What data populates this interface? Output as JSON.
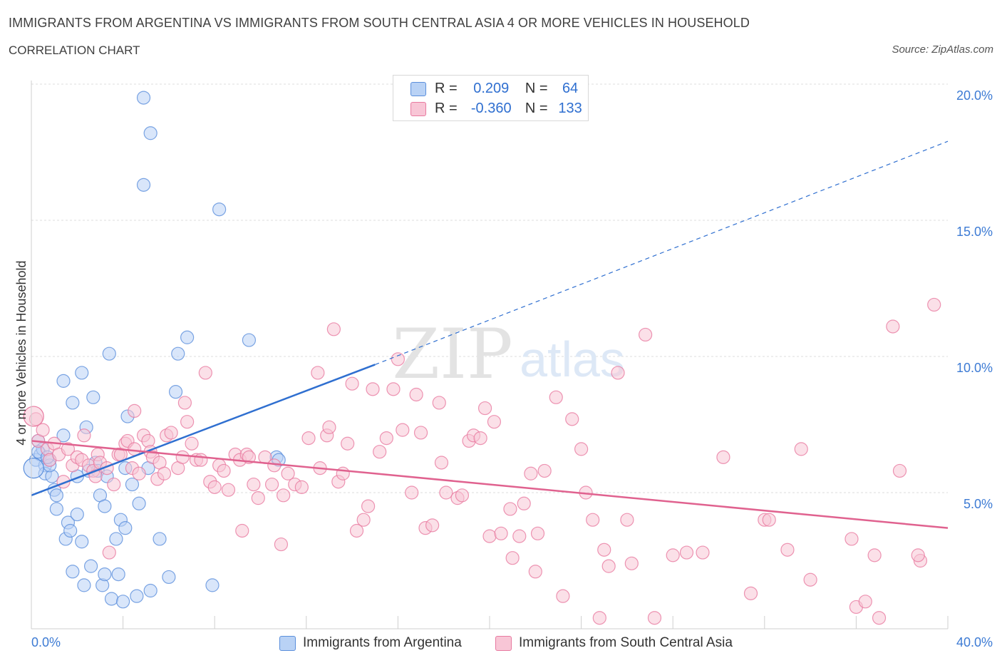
{
  "title": "IMMIGRANTS FROM ARGENTINA VS IMMIGRANTS FROM SOUTH CENTRAL ASIA 4 OR MORE VEHICLES IN HOUSEHOLD",
  "subtitle": "CORRELATION CHART",
  "source": "Source: ZipAtlas.com",
  "colors": {
    "blue": "#5b8fdc",
    "blue_fill": "#b9d2f5",
    "blue_line": "#2f6fd0",
    "pink": "#e87aa0",
    "pink_fill": "#f8c6d6",
    "pink_line": "#e0628f",
    "axis_label": "#3d7bd4"
  },
  "legend": {
    "r_label": "R =",
    "n_label": "N =",
    "rows": [
      {
        "r": "0.209",
        "n": "64"
      },
      {
        "r": "-0.360",
        "n": "133"
      }
    ]
  },
  "chart_data": {
    "type": "scatter",
    "title": "IMMIGRANTS FROM ARGENTINA VS IMMIGRANTS FROM SOUTH CENTRAL ASIA 4 OR MORE VEHICLES IN HOUSEHOLD",
    "xlabel": "",
    "ylabel": "4 or more Vehicles in Household",
    "xlim": [
      0,
      40
    ],
    "ylim": [
      0,
      20
    ],
    "x_tick_labels": [
      "0.0%",
      "40.0%"
    ],
    "y_ticks": [
      5,
      10,
      15,
      20
    ],
    "y_tick_labels": [
      "5.0%",
      "10.0%",
      "15.0%",
      "20.0%"
    ],
    "grid": true,
    "legend_position": "top-center",
    "watermark": "ZIPatlas",
    "series": [
      {
        "name": "Immigrants from Argentina",
        "color": "blue",
        "r": 0.209,
        "n": 64,
        "trend": {
          "x0": 0,
          "y0": 4.9,
          "x1": 15,
          "y1": 9.7,
          "dashed_to_x": 40,
          "dashed_to_y": 17.9
        },
        "points": [
          [
            0.2,
            6.2
          ],
          [
            0.3,
            6.9
          ],
          [
            0.4,
            6.4
          ],
          [
            0.5,
            6.6
          ],
          [
            0.6,
            6.0
          ],
          [
            0.6,
            5.7
          ],
          [
            0.8,
            6.2
          ],
          [
            0.9,
            5.6
          ],
          [
            0.8,
            6.0
          ],
          [
            1.0,
            5.1
          ],
          [
            1.1,
            4.9
          ],
          [
            1.1,
            4.4
          ],
          [
            1.4,
            7.1
          ],
          [
            1.4,
            9.1
          ],
          [
            1.5,
            3.3
          ],
          [
            1.6,
            3.9
          ],
          [
            1.7,
            3.6
          ],
          [
            1.8,
            8.3
          ],
          [
            1.8,
            2.1
          ],
          [
            2.0,
            5.6
          ],
          [
            2.0,
            4.2
          ],
          [
            2.2,
            9.4
          ],
          [
            2.2,
            3.2
          ],
          [
            2.3,
            1.6
          ],
          [
            2.4,
            7.4
          ],
          [
            2.5,
            5.8
          ],
          [
            2.6,
            2.3
          ],
          [
            2.7,
            8.5
          ],
          [
            2.8,
            6.1
          ],
          [
            2.9,
            5.8
          ],
          [
            3.0,
            4.9
          ],
          [
            3.1,
            1.6
          ],
          [
            3.2,
            4.5
          ],
          [
            3.2,
            2.0
          ],
          [
            3.3,
            5.6
          ],
          [
            3.4,
            10.1
          ],
          [
            3.5,
            1.1
          ],
          [
            3.7,
            3.3
          ],
          [
            3.8,
            2.0
          ],
          [
            3.9,
            4.0
          ],
          [
            4.0,
            1.0
          ],
          [
            4.1,
            3.7
          ],
          [
            4.1,
            5.9
          ],
          [
            4.2,
            7.8
          ],
          [
            4.4,
            5.3
          ],
          [
            4.6,
            1.2
          ],
          [
            4.7,
            4.6
          ],
          [
            4.9,
            19.5
          ],
          [
            4.9,
            16.3
          ],
          [
            5.1,
            5.9
          ],
          [
            5.2,
            18.2
          ],
          [
            5.2,
            1.4
          ],
          [
            5.6,
            3.3
          ],
          [
            6.0,
            1.9
          ],
          [
            6.3,
            8.7
          ],
          [
            6.4,
            10.1
          ],
          [
            6.8,
            10.7
          ],
          [
            7.9,
            1.6
          ],
          [
            8.2,
            15.4
          ],
          [
            9.5,
            10.6
          ],
          [
            10.7,
            6.3
          ],
          [
            10.8,
            6.2
          ],
          [
            0.3,
            6.5
          ],
          [
            0.7,
            6.3
          ]
        ]
      },
      {
        "name": "Immigrants from South Central Asia",
        "color": "pink",
        "r": -0.36,
        "n": 133,
        "trend": {
          "x0": 0,
          "y0": 6.9,
          "x1": 40,
          "y1": 3.7
        },
        "points": [
          [
            0.2,
            7.7
          ],
          [
            0.3,
            6.9
          ],
          [
            0.5,
            7.3
          ],
          [
            0.7,
            6.6
          ],
          [
            0.8,
            6.2
          ],
          [
            1.0,
            6.8
          ],
          [
            1.2,
            6.4
          ],
          [
            1.4,
            5.4
          ],
          [
            1.6,
            6.6
          ],
          [
            1.8,
            6.0
          ],
          [
            2.0,
            6.3
          ],
          [
            2.2,
            6.2
          ],
          [
            2.3,
            7.1
          ],
          [
            2.5,
            6.0
          ],
          [
            2.7,
            5.8
          ],
          [
            2.8,
            5.6
          ],
          [
            2.9,
            6.4
          ],
          [
            3.0,
            6.1
          ],
          [
            3.3,
            5.9
          ],
          [
            3.4,
            2.8
          ],
          [
            3.6,
            5.3
          ],
          [
            3.8,
            6.4
          ],
          [
            3.9,
            6.4
          ],
          [
            4.1,
            6.8
          ],
          [
            4.2,
            6.9
          ],
          [
            4.4,
            5.9
          ],
          [
            4.5,
            8.0
          ],
          [
            4.7,
            5.7
          ],
          [
            4.9,
            7.1
          ],
          [
            5.1,
            6.9
          ],
          [
            5.2,
            6.5
          ],
          [
            5.3,
            6.3
          ],
          [
            5.5,
            5.5
          ],
          [
            5.6,
            6.1
          ],
          [
            5.8,
            5.7
          ],
          [
            5.9,
            7.1
          ],
          [
            6.1,
            7.2
          ],
          [
            6.4,
            5.9
          ],
          [
            6.6,
            6.3
          ],
          [
            6.7,
            8.3
          ],
          [
            6.8,
            7.6
          ],
          [
            7.0,
            6.8
          ],
          [
            7.2,
            6.2
          ],
          [
            7.4,
            6.2
          ],
          [
            7.6,
            9.4
          ],
          [
            7.8,
            5.4
          ],
          [
            8.0,
            5.2
          ],
          [
            8.2,
            6.0
          ],
          [
            8.4,
            5.8
          ],
          [
            8.6,
            5.1
          ],
          [
            8.9,
            6.4
          ],
          [
            9.1,
            6.2
          ],
          [
            9.2,
            3.6
          ],
          [
            9.4,
            6.4
          ],
          [
            9.5,
            6.3
          ],
          [
            9.7,
            5.3
          ],
          [
            9.9,
            4.8
          ],
          [
            10.2,
            6.3
          ],
          [
            10.5,
            5.3
          ],
          [
            10.6,
            6.0
          ],
          [
            10.9,
            3.1
          ],
          [
            11.0,
            4.9
          ],
          [
            11.2,
            5.7
          ],
          [
            11.5,
            5.3
          ],
          [
            11.8,
            5.2
          ],
          [
            12.1,
            7.0
          ],
          [
            12.5,
            9.4
          ],
          [
            12.6,
            5.9
          ],
          [
            12.9,
            7.1
          ],
          [
            13.0,
            7.4
          ],
          [
            13.2,
            11.0
          ],
          [
            13.4,
            5.4
          ],
          [
            13.6,
            5.7
          ],
          [
            13.8,
            6.8
          ],
          [
            14.0,
            9.0
          ],
          [
            14.2,
            3.6
          ],
          [
            14.5,
            4.0
          ],
          [
            14.7,
            4.5
          ],
          [
            14.9,
            8.8
          ],
          [
            15.2,
            6.5
          ],
          [
            15.5,
            7.0
          ],
          [
            15.8,
            8.8
          ],
          [
            16.0,
            9.9
          ],
          [
            16.2,
            7.3
          ],
          [
            16.6,
            5.0
          ],
          [
            16.8,
            8.6
          ],
          [
            17.0,
            7.2
          ],
          [
            17.2,
            3.7
          ],
          [
            17.5,
            3.8
          ],
          [
            17.8,
            8.3
          ],
          [
            17.9,
            6.1
          ],
          [
            18.1,
            5.0
          ],
          [
            18.6,
            4.8
          ],
          [
            18.8,
            4.9
          ],
          [
            19.1,
            6.9
          ],
          [
            19.3,
            7.1
          ],
          [
            19.6,
            7.0
          ],
          [
            19.8,
            8.1
          ],
          [
            20.0,
            3.4
          ],
          [
            20.2,
            7.6
          ],
          [
            20.5,
            3.5
          ],
          [
            20.9,
            4.4
          ],
          [
            21.0,
            2.6
          ],
          [
            21.3,
            3.4
          ],
          [
            21.5,
            4.6
          ],
          [
            21.8,
            5.7
          ],
          [
            22.0,
            2.1
          ],
          [
            22.1,
            3.5
          ],
          [
            22.4,
            5.8
          ],
          [
            22.9,
            8.5
          ],
          [
            23.2,
            1.2
          ],
          [
            23.6,
            7.7
          ],
          [
            24.0,
            6.6
          ],
          [
            24.2,
            5.0
          ],
          [
            24.5,
            4.0
          ],
          [
            24.8,
            0.4
          ],
          [
            25.0,
            2.9
          ],
          [
            25.2,
            2.3
          ],
          [
            25.6,
            9.4
          ],
          [
            26.0,
            4.0
          ],
          [
            26.2,
            2.4
          ],
          [
            27.2,
            0.4
          ],
          [
            28.0,
            2.7
          ],
          [
            28.6,
            2.8
          ],
          [
            29.3,
            2.8
          ],
          [
            30.2,
            6.3
          ],
          [
            32.0,
            4.0
          ],
          [
            33.0,
            2.9
          ],
          [
            33.6,
            6.6
          ],
          [
            34.0,
            1.8
          ],
          [
            35.8,
            3.3
          ],
          [
            36.0,
            0.8
          ],
          [
            36.4,
            1.0
          ],
          [
            36.8,
            2.7
          ],
          [
            37.0,
            0.4
          ],
          [
            37.6,
            11.1
          ],
          [
            37.9,
            5.8
          ],
          [
            38.8,
            2.5
          ],
          [
            39.4,
            11.9
          ],
          [
            31.4,
            1.3
          ],
          [
            38.7,
            2.7
          ],
          [
            32.2,
            4.0
          ],
          [
            26.8,
            10.8
          ],
          [
            4.5,
            6.6
          ]
        ]
      }
    ]
  },
  "bottom_legend": [
    "Immigrants from Argentina",
    "Immigrants from South Central Asia"
  ]
}
